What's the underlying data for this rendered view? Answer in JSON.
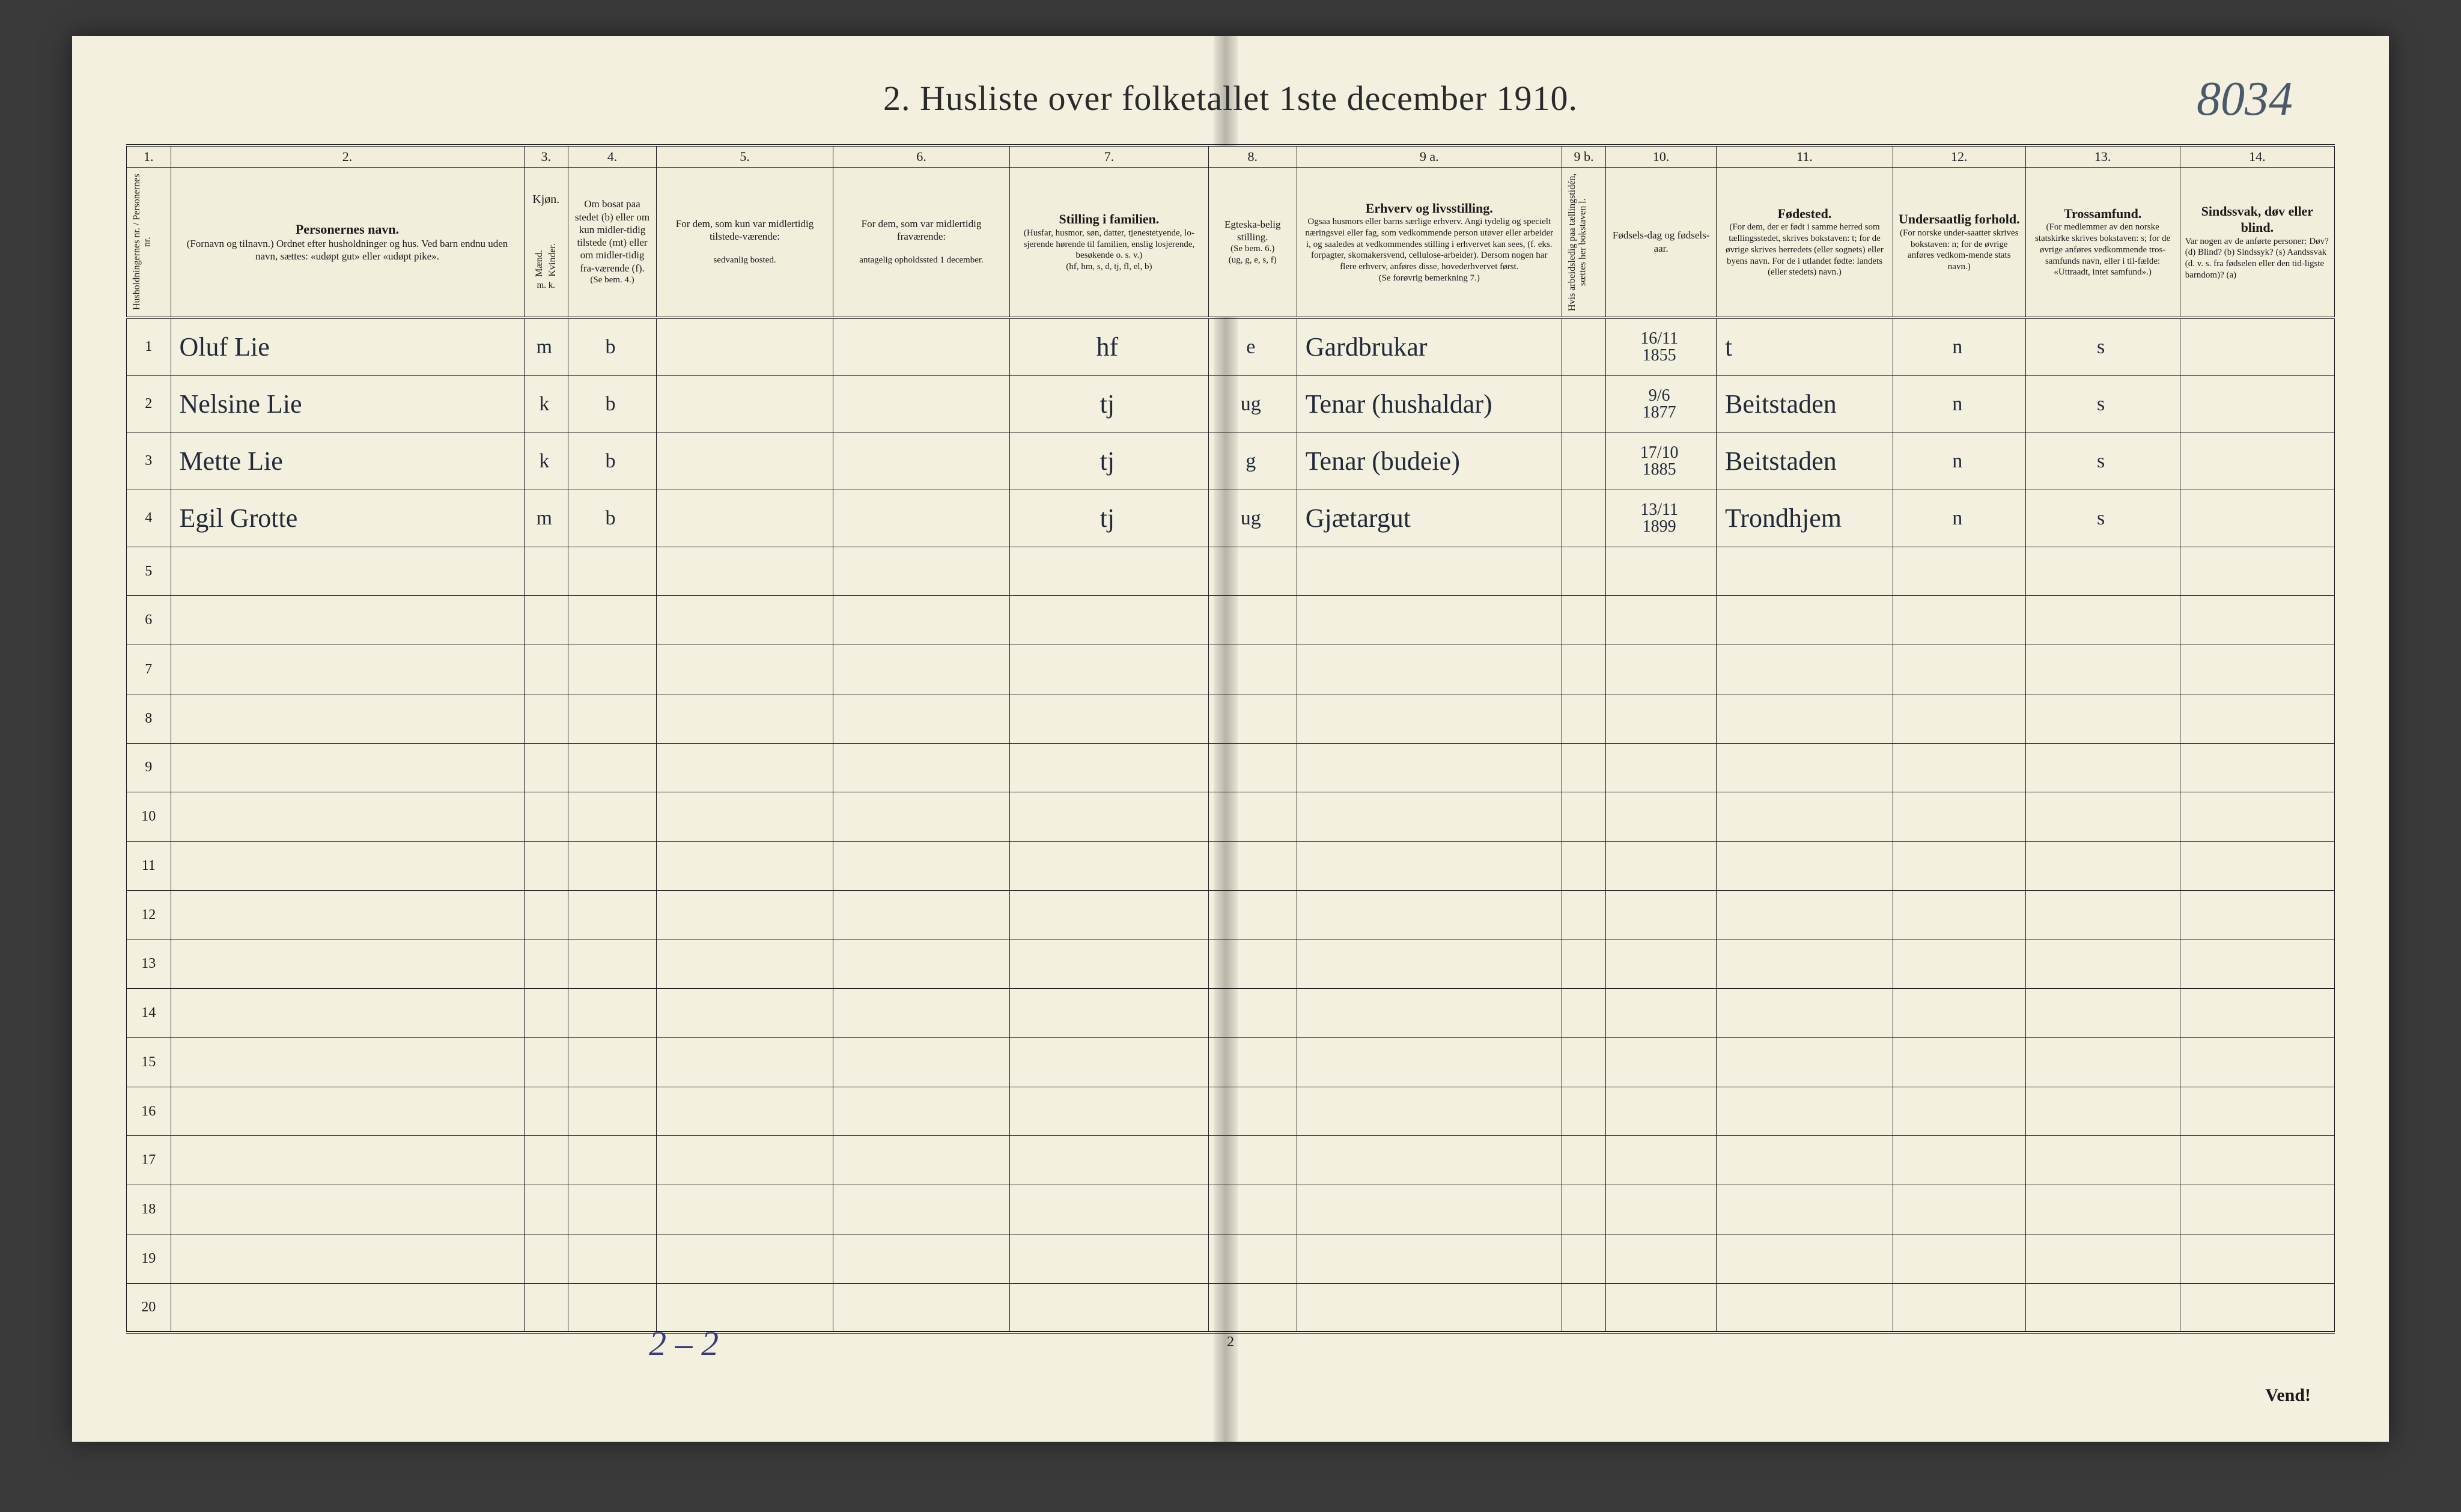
{
  "document": {
    "title": "2.  Husliste over folketallet 1ste december 1910.",
    "corner_number": "8034",
    "page_number_bottom": "2",
    "footer_tally": "2 – 2",
    "vend": "Vend!",
    "page_bg": "#f4f0e0",
    "ink_color": "#1a1a1a",
    "handwriting_color": "#222a38"
  },
  "columns": {
    "numbers": [
      "1.",
      "2.",
      "3.",
      "4.",
      "5.",
      "6.",
      "7.",
      "8.",
      "9 a.",
      "9 b.",
      "10.",
      "11.",
      "12.",
      "13.",
      "14."
    ],
    "widths_pct": [
      2,
      16,
      2,
      4,
      8,
      8,
      9,
      4,
      12,
      2,
      5,
      8,
      6,
      7,
      7
    ],
    "col1": {
      "head": "Husholdningernes nr.  /  Personernes nr."
    },
    "col2": {
      "head_strong": "Personernes navn.",
      "head_sub": "(Fornavn og tilnavn.)\nOrdnet efter husholdninger og hus.\nVed barn endnu uden navn, sættes: «udøpt gut» eller «udøpt pike»."
    },
    "col3": {
      "head": "Kjøn.",
      "sub_m": "Mænd.",
      "sub_k": "Kvinder.",
      "foot": "m. k."
    },
    "col4": {
      "head": "Om bosat paa stedet (b) eller om kun midler-tidig tilstede (mt) eller om midler-tidig fra-værende (f).",
      "foot": "(Se bem. 4.)"
    },
    "col5": {
      "head": "For dem, som kun var midlertidig tilstede-værende:",
      "sub": "sedvanlig bosted."
    },
    "col6": {
      "head": "For dem, som var midlertidig fraværende:",
      "sub": "antagelig opholdssted 1 december."
    },
    "col7": {
      "head_strong": "Stilling i familien.",
      "head_sub": "(Husfar, husmor, søn, datter, tjenestetyende, lo-sjerende hørende til familien, enslig losjerende, besøkende o. s. v.)",
      "foot": "(hf, hm, s, d, tj, fl, el, b)"
    },
    "col8": {
      "head": "Egteska-belig stilling.",
      "sub": "(Se bem. 6.)",
      "foot": "(ug, g, e, s, f)"
    },
    "col9a": {
      "head_strong": "Erhverv og livsstilling.",
      "head_sub": "Ogsaa husmors eller barns særlige erhverv. Angi tydelig og specielt næringsvei eller fag, som vedkommende person utøver eller arbeider i, og saaledes at vedkommendes stilling i erhvervet kan sees, (f. eks. forpagter, skomakersvend, cellulose-arbeider). Dersom nogen har flere erhverv, anføres disse, hovederhvervet først.",
      "foot": "(Se forøvrig bemerkning 7.)"
    },
    "col9b": {
      "head": "Hvis arbeidsledig paa tællingstidén, sœttes her bokstaven l."
    },
    "col10": {
      "head": "Fødsels-dag og fødsels-aar."
    },
    "col11": {
      "head_strong": "Fødested.",
      "head_sub": "(For dem, der er født i samme herred som tællingsstedet, skrives bokstaven: t; for de øvrige skrives herredets (eller sognets) eller byens navn. For de i utlandet fødte: landets (eller stedets) navn.)"
    },
    "col12": {
      "head_strong": "Undersaatlig forhold.",
      "head_sub": "(For norske under-saatter skrives bokstaven: n; for de øvrige anføres vedkom-mende stats navn.)"
    },
    "col13": {
      "head_strong": "Trossamfund.",
      "head_sub": "(For medlemmer av den norske statskirke skrives bokstaven: s; for de øvrige anføres vedkommende tros-samfunds navn, eller i til-fælde: «Uttraadt, intet samfund».)"
    },
    "col14": {
      "head_strong": "Sindssvak, døv eller blind.",
      "head_sub": "Var nogen av de anførte personer:\nDøv? (d)\nBlind? (b)\nSindssyk? (s)\nAandssvak (d. v. s. fra fødselen eller den tid-ligste barndom)? (a)"
    }
  },
  "rows": [
    {
      "n": "1",
      "name": "Oluf Lie",
      "sex": "m",
      "bosat": "b",
      "col5": "",
      "col6": "",
      "stilling": "hf",
      "egte": "e",
      "erhverv": "Gardbrukar",
      "dob": "16/11\n1855",
      "fodested": "t",
      "under": "n",
      "tros": "s",
      "sinds": ""
    },
    {
      "n": "2",
      "name": "Nelsine Lie",
      "sex": "k",
      "bosat": "b",
      "col5": "",
      "col6": "",
      "stilling": "tj",
      "egte": "ug",
      "erhverv": "Tenar (hushaldar)",
      "dob": "9/6\n1877",
      "fodested": "Beitstaden",
      "under": "n",
      "tros": "s",
      "sinds": ""
    },
    {
      "n": "3",
      "name": "Mette Lie",
      "sex": "k",
      "bosat": "b",
      "col5": "",
      "col6": "",
      "stilling": "tj",
      "egte": "g",
      "erhverv": "Tenar (budeie)",
      "dob": "17/10\n1885",
      "fodested": "Beitstaden",
      "under": "n",
      "tros": "s",
      "sinds": ""
    },
    {
      "n": "4",
      "name": "Egil Grotte",
      "sex": "m",
      "bosat": "b",
      "col5": "",
      "col6": "",
      "stilling": "tj",
      "egte": "ug",
      "erhverv": "Gjætargut",
      "dob": "13/11\n1899",
      "fodested": "Trondhjem",
      "under": "n",
      "tros": "s",
      "sinds": ""
    }
  ],
  "empty_row_numbers": [
    "5",
    "6",
    "7",
    "8",
    "9",
    "10",
    "11",
    "12",
    "13",
    "14",
    "15",
    "16",
    "17",
    "18",
    "19",
    "20"
  ]
}
